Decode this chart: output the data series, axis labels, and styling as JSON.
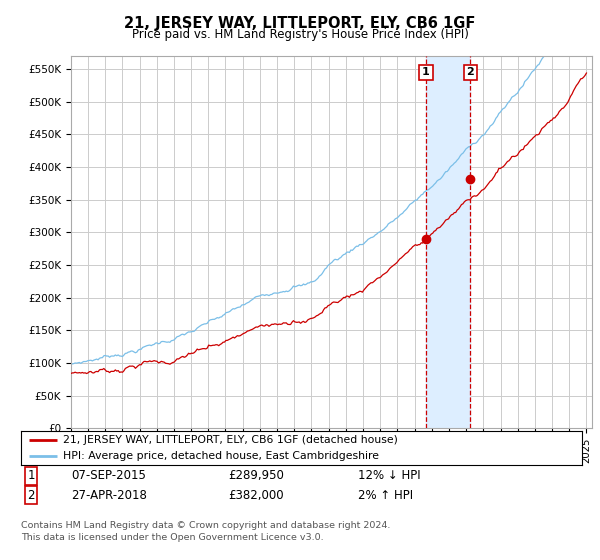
{
  "title": "21, JERSEY WAY, LITTLEPORT, ELY, CB6 1GF",
  "subtitle": "Price paid vs. HM Land Registry's House Price Index (HPI)",
  "ylabel_ticks": [
    "£0",
    "£50K",
    "£100K",
    "£150K",
    "£200K",
    "£250K",
    "£300K",
    "£350K",
    "£400K",
    "£450K",
    "£500K",
    "£550K"
  ],
  "ytick_values": [
    0,
    50000,
    100000,
    150000,
    200000,
    250000,
    300000,
    350000,
    400000,
    450000,
    500000,
    550000
  ],
  "ylim": [
    0,
    570000
  ],
  "sale1_price": 289950,
  "sale1_date_str": "07-SEP-2015",
  "sale1_hpi_pct": "12% ↓ HPI",
  "sale2_price": 382000,
  "sale2_date_str": "27-APR-2018",
  "sale2_hpi_pct": "2% ↑ HPI",
  "legend_line1": "21, JERSEY WAY, LITTLEPORT, ELY, CB6 1GF (detached house)",
  "legend_line2": "HPI: Average price, detached house, East Cambridgeshire",
  "footer1": "Contains HM Land Registry data © Crown copyright and database right 2024.",
  "footer2": "This data is licensed under the Open Government Licence v3.0.",
  "hpi_color": "#7bbfe8",
  "price_color": "#cc0000",
  "shade_color": "#ddeeff",
  "grid_color": "#cccccc",
  "background_color": "#ffffff",
  "xlim_left": 1995,
  "xlim_right": 2025.3
}
